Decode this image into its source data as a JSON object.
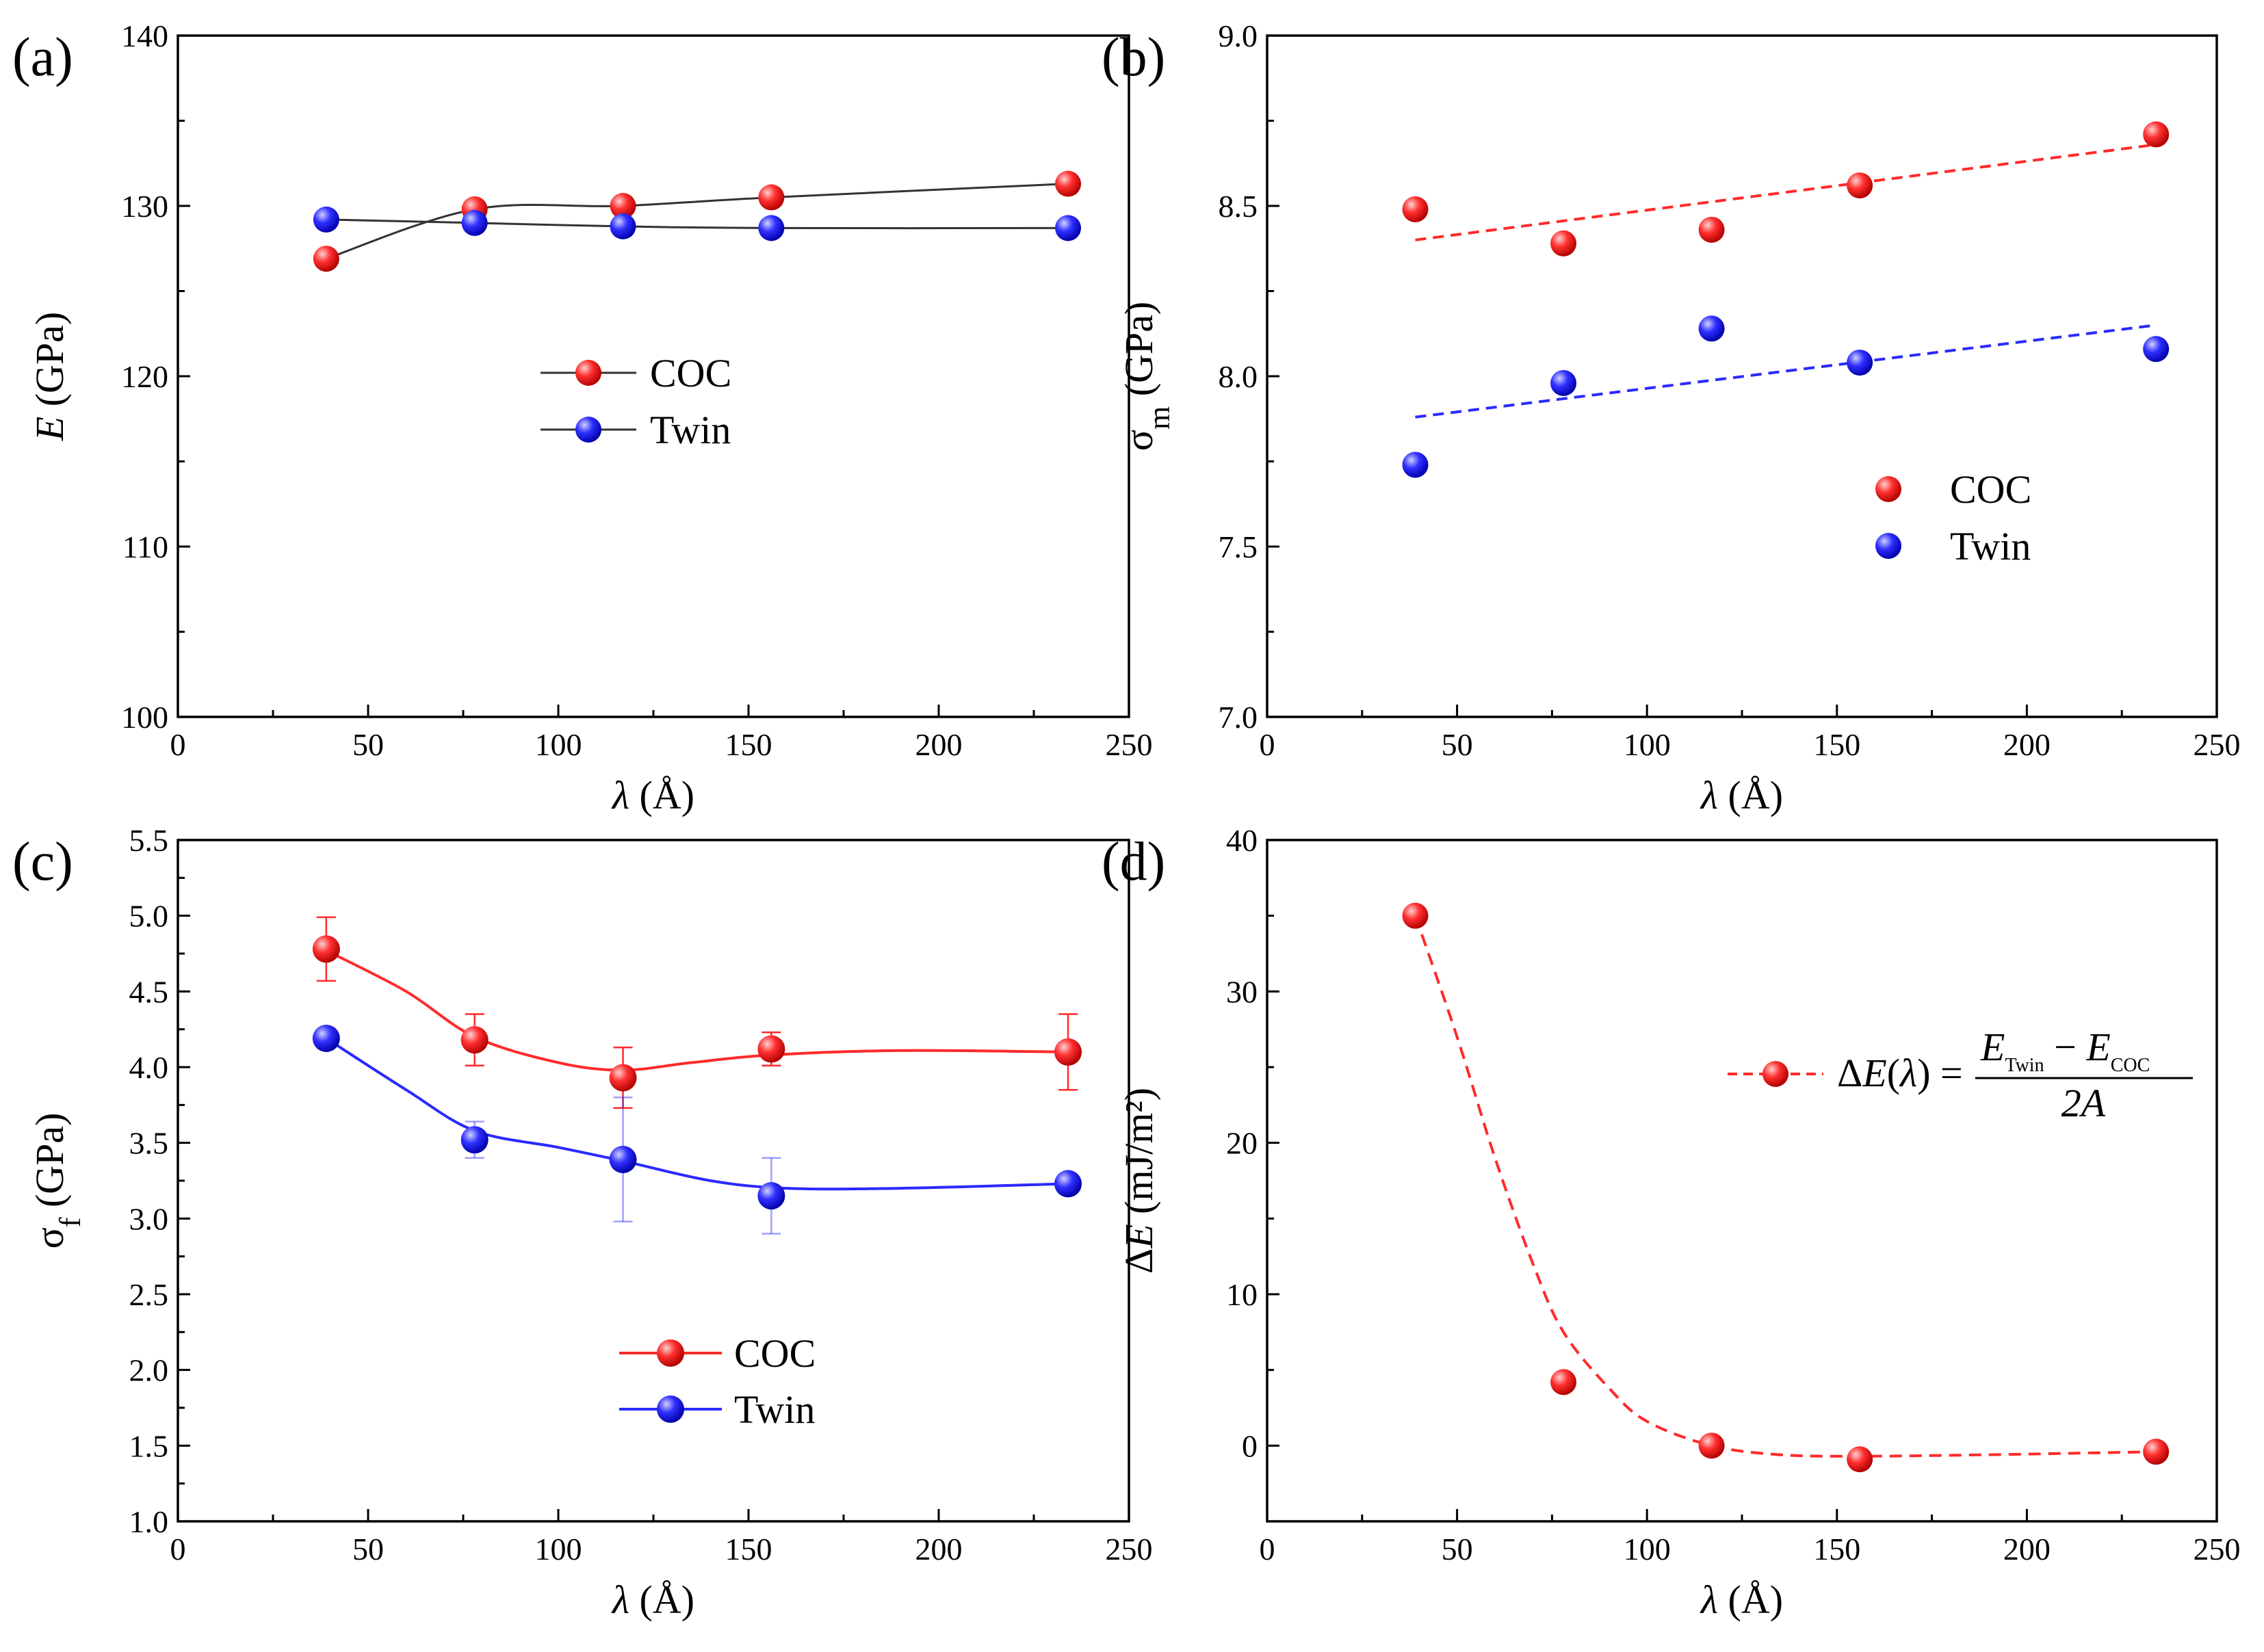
{
  "colors": {
    "coc": "#ff2a2a",
    "twin": "#2a2aff",
    "connector": "#333333"
  },
  "chart_data": [
    {
      "panel_label": "(a)",
      "type": "line",
      "xlabel_var": "λ",
      "xlabel_unit": " (Å)",
      "ylabel_var": "E",
      "ylabel_unit": " (GPa)",
      "xlim": [
        0,
        250
      ],
      "ylim": [
        100,
        140
      ],
      "xticks": [
        0,
        50,
        100,
        150,
        200,
        250
      ],
      "yticks": [
        100,
        110,
        120,
        130,
        140
      ],
      "legend": [
        "COC",
        "Twin"
      ],
      "x": [
        39,
        78,
        117,
        156,
        234
      ],
      "series": [
        {
          "name": "COC",
          "values": [
            126.9,
            129.8,
            130.0,
            130.5,
            131.3
          ],
          "line": "solid-connector"
        },
        {
          "name": "Twin",
          "values": [
            129.2,
            129.0,
            128.8,
            128.7,
            128.7
          ],
          "line": "solid-connector"
        }
      ]
    },
    {
      "panel_label": "(b)",
      "type": "scatter",
      "xlabel_var": "λ",
      "xlabel_unit": " (Å)",
      "ylabel_var": "σ",
      "ylabel_sub": "m",
      "ylabel_unit": " (GPa)",
      "xlim": [
        0,
        250
      ],
      "ylim": [
        7.0,
        9.0
      ],
      "xticks": [
        0,
        50,
        100,
        150,
        200,
        250
      ],
      "yticks": [
        "7.0",
        "7.5",
        "8.0",
        "8.5",
        "9.0"
      ],
      "legend": [
        "COC",
        "Twin"
      ],
      "x": [
        39,
        78,
        117,
        156,
        234
      ],
      "series": [
        {
          "name": "COC",
          "values": [
            8.49,
            8.39,
            8.43,
            8.56,
            8.71
          ],
          "fit": [
            [
              39,
              8.4
            ],
            [
              234,
              8.68
            ]
          ]
        },
        {
          "name": "Twin",
          "values": [
            7.74,
            7.98,
            8.14,
            8.04,
            8.08
          ],
          "fit": [
            [
              39,
              7.88
            ],
            [
              234,
              8.15
            ]
          ]
        }
      ]
    },
    {
      "panel_label": "(c)",
      "type": "line",
      "xlabel_var": "λ",
      "xlabel_unit": " (Å)",
      "ylabel_var": "σ",
      "ylabel_sub": "f",
      "ylabel_unit": " (GPa)",
      "xlim": [
        0,
        250
      ],
      "ylim": [
        1.0,
        5.5
      ],
      "xticks": [
        0,
        50,
        100,
        150,
        200,
        250
      ],
      "yticks": [
        "1.0",
        "1.5",
        "2.0",
        "2.5",
        "3.0",
        "3.5",
        "4.0",
        "4.5",
        "5.0",
        "5.5"
      ],
      "legend": [
        "COC",
        "Twin"
      ],
      "x": [
        39,
        78,
        117,
        156,
        234
      ],
      "series": [
        {
          "name": "COC",
          "values": [
            4.78,
            4.18,
            3.93,
            4.12,
            4.1
          ],
          "errors": [
            0.21,
            0.17,
            0.2,
            0.11,
            0.25
          ],
          "curve": [
            [
              39,
              4.77
            ],
            [
              60,
              4.5
            ],
            [
              78,
              4.2
            ],
            [
              100,
              4.03
            ],
            [
              117,
              3.98
            ],
            [
              135,
              4.03
            ],
            [
              156,
              4.08
            ],
            [
              190,
              4.11
            ],
            [
              234,
              4.1
            ]
          ]
        },
        {
          "name": "Twin",
          "values": [
            4.19,
            3.52,
            3.39,
            3.15,
            3.23
          ],
          "errors": [
            0.0,
            0.12,
            0.41,
            0.25,
            0.0
          ],
          "curve": [
            [
              39,
              4.19
            ],
            [
              60,
              3.85
            ],
            [
              78,
              3.58
            ],
            [
              100,
              3.47
            ],
            [
              117,
              3.38
            ],
            [
              140,
              3.25
            ],
            [
              160,
              3.2
            ],
            [
              190,
              3.2
            ],
            [
              234,
              3.23
            ]
          ]
        }
      ]
    },
    {
      "panel_label": "(d)",
      "type": "scatter",
      "xlabel_var": "λ",
      "xlabel_unit": " (Å)",
      "ylabel_var": "ΔE",
      "ylabel_unit": " (mJ/m²)",
      "xlim": [
        0,
        250
      ],
      "ylim": [
        -5,
        40
      ],
      "xticks": [
        0,
        50,
        100,
        150,
        200,
        250
      ],
      "yticks": [
        0,
        10,
        20,
        30,
        40
      ],
      "legend_formula": {
        "lhs": "ΔE(λ) =",
        "numerator_a": "E",
        "numerator_a_sub": "Twin",
        "minus": "−",
        "numerator_b": "E",
        "numerator_b_sub": "COC",
        "denominator": "2A"
      },
      "x": [
        39,
        78,
        117,
        156,
        234
      ],
      "series": [
        {
          "name": "ΔE",
          "values": [
            35.0,
            4.2,
            0.0,
            -0.9,
            -0.4
          ],
          "curve": [
            [
              39,
              35.0
            ],
            [
              50,
              27.0
            ],
            [
              60,
              19.0
            ],
            [
              70,
              12.0
            ],
            [
              78,
              7.5
            ],
            [
              90,
              3.8
            ],
            [
              100,
              1.6
            ],
            [
              117,
              0.0
            ],
            [
              135,
              -0.6
            ],
            [
              156,
              -0.7
            ],
            [
              190,
              -0.6
            ],
            [
              234,
              -0.4
            ]
          ]
        }
      ]
    }
  ]
}
